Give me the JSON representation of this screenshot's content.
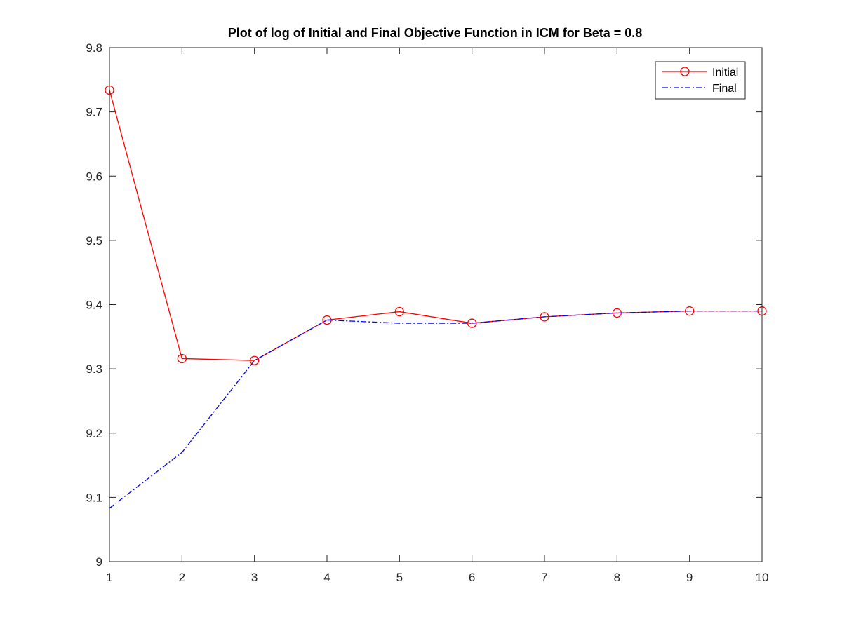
{
  "chart_data": {
    "type": "line",
    "title": "Plot of log of Initial and Final Objective Function in ICM for Beta = 0.8",
    "xlabel": "",
    "ylabel": "",
    "xlim": [
      1,
      10
    ],
    "ylim": [
      9,
      9.8
    ],
    "x": [
      1,
      2,
      3,
      4,
      5,
      6,
      7,
      8,
      9,
      10
    ],
    "x_ticks": [
      "1",
      "2",
      "3",
      "4",
      "5",
      "6",
      "7",
      "8",
      "9",
      "10"
    ],
    "y_ticks": [
      "9",
      "9.1",
      "9.2",
      "9.3",
      "9.4",
      "9.5",
      "9.6",
      "9.7",
      "9.8"
    ],
    "y_tick_values": [
      9,
      9.1,
      9.2,
      9.3,
      9.4,
      9.5,
      9.6,
      9.7,
      9.8
    ],
    "grid": false,
    "legend_position": "top-right",
    "series": [
      {
        "name": "Initial",
        "color": "#ff0000",
        "line_style": "solid",
        "marker": "circle",
        "values": [
          9.734,
          9.316,
          9.313,
          9.376,
          9.389,
          9.371,
          9.381,
          9.387,
          9.39,
          9.39
        ]
      },
      {
        "name": "Final",
        "color": "#0000ff",
        "line_style": "dash-dot",
        "marker": "none",
        "values": [
          9.083,
          9.17,
          9.313,
          9.376,
          9.371,
          9.371,
          9.381,
          9.387,
          9.39,
          9.39
        ]
      }
    ]
  }
}
